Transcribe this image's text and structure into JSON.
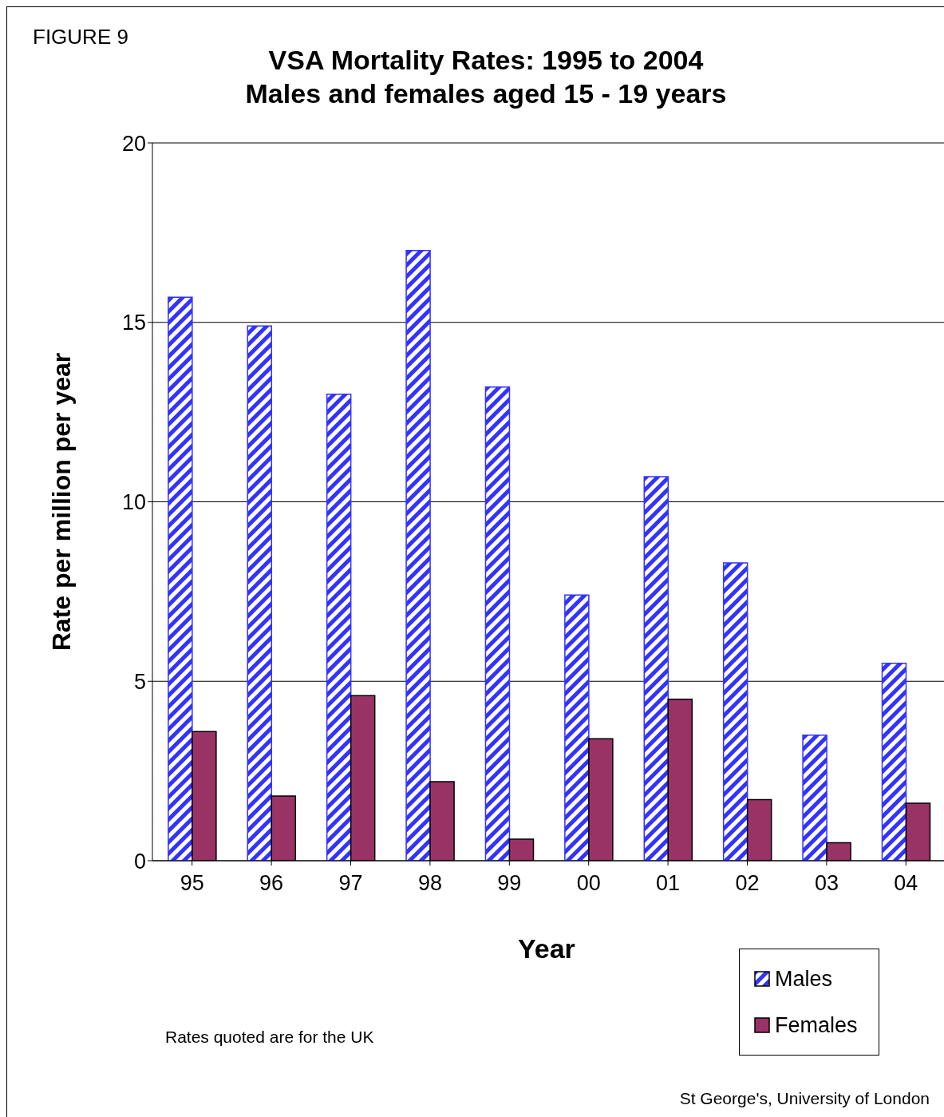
{
  "chart_data": {
    "type": "bar",
    "title": "VSA Mortality Rates: 1995 to 2004\nMales and females aged 15 - 19 years",
    "xlabel": "Year",
    "ylabel": "Rate per million per year",
    "categories": [
      "95",
      "96",
      "97",
      "98",
      "99",
      "00",
      "01",
      "02",
      "03",
      "04"
    ],
    "series": [
      {
        "name": "Males",
        "color": "#3333ff",
        "values": [
          15.7,
          14.9,
          13.0,
          17.0,
          13.2,
          7.4,
          10.7,
          8.3,
          3.5,
          5.5
        ]
      },
      {
        "name": "Females",
        "color": "#993366",
        "values": [
          3.6,
          1.8,
          4.6,
          2.2,
          0.6,
          3.4,
          4.5,
          1.7,
          0.5,
          1.6
        ]
      }
    ],
    "ylim": [
      0,
      20
    ],
    "yticks": [
      0,
      5,
      10,
      15,
      20
    ],
    "grid": "y",
    "legend": "bottom right",
    "annotations": [
      "FIGURE  9",
      "Rates quoted are for the UK",
      "St George's, University of London"
    ]
  }
}
